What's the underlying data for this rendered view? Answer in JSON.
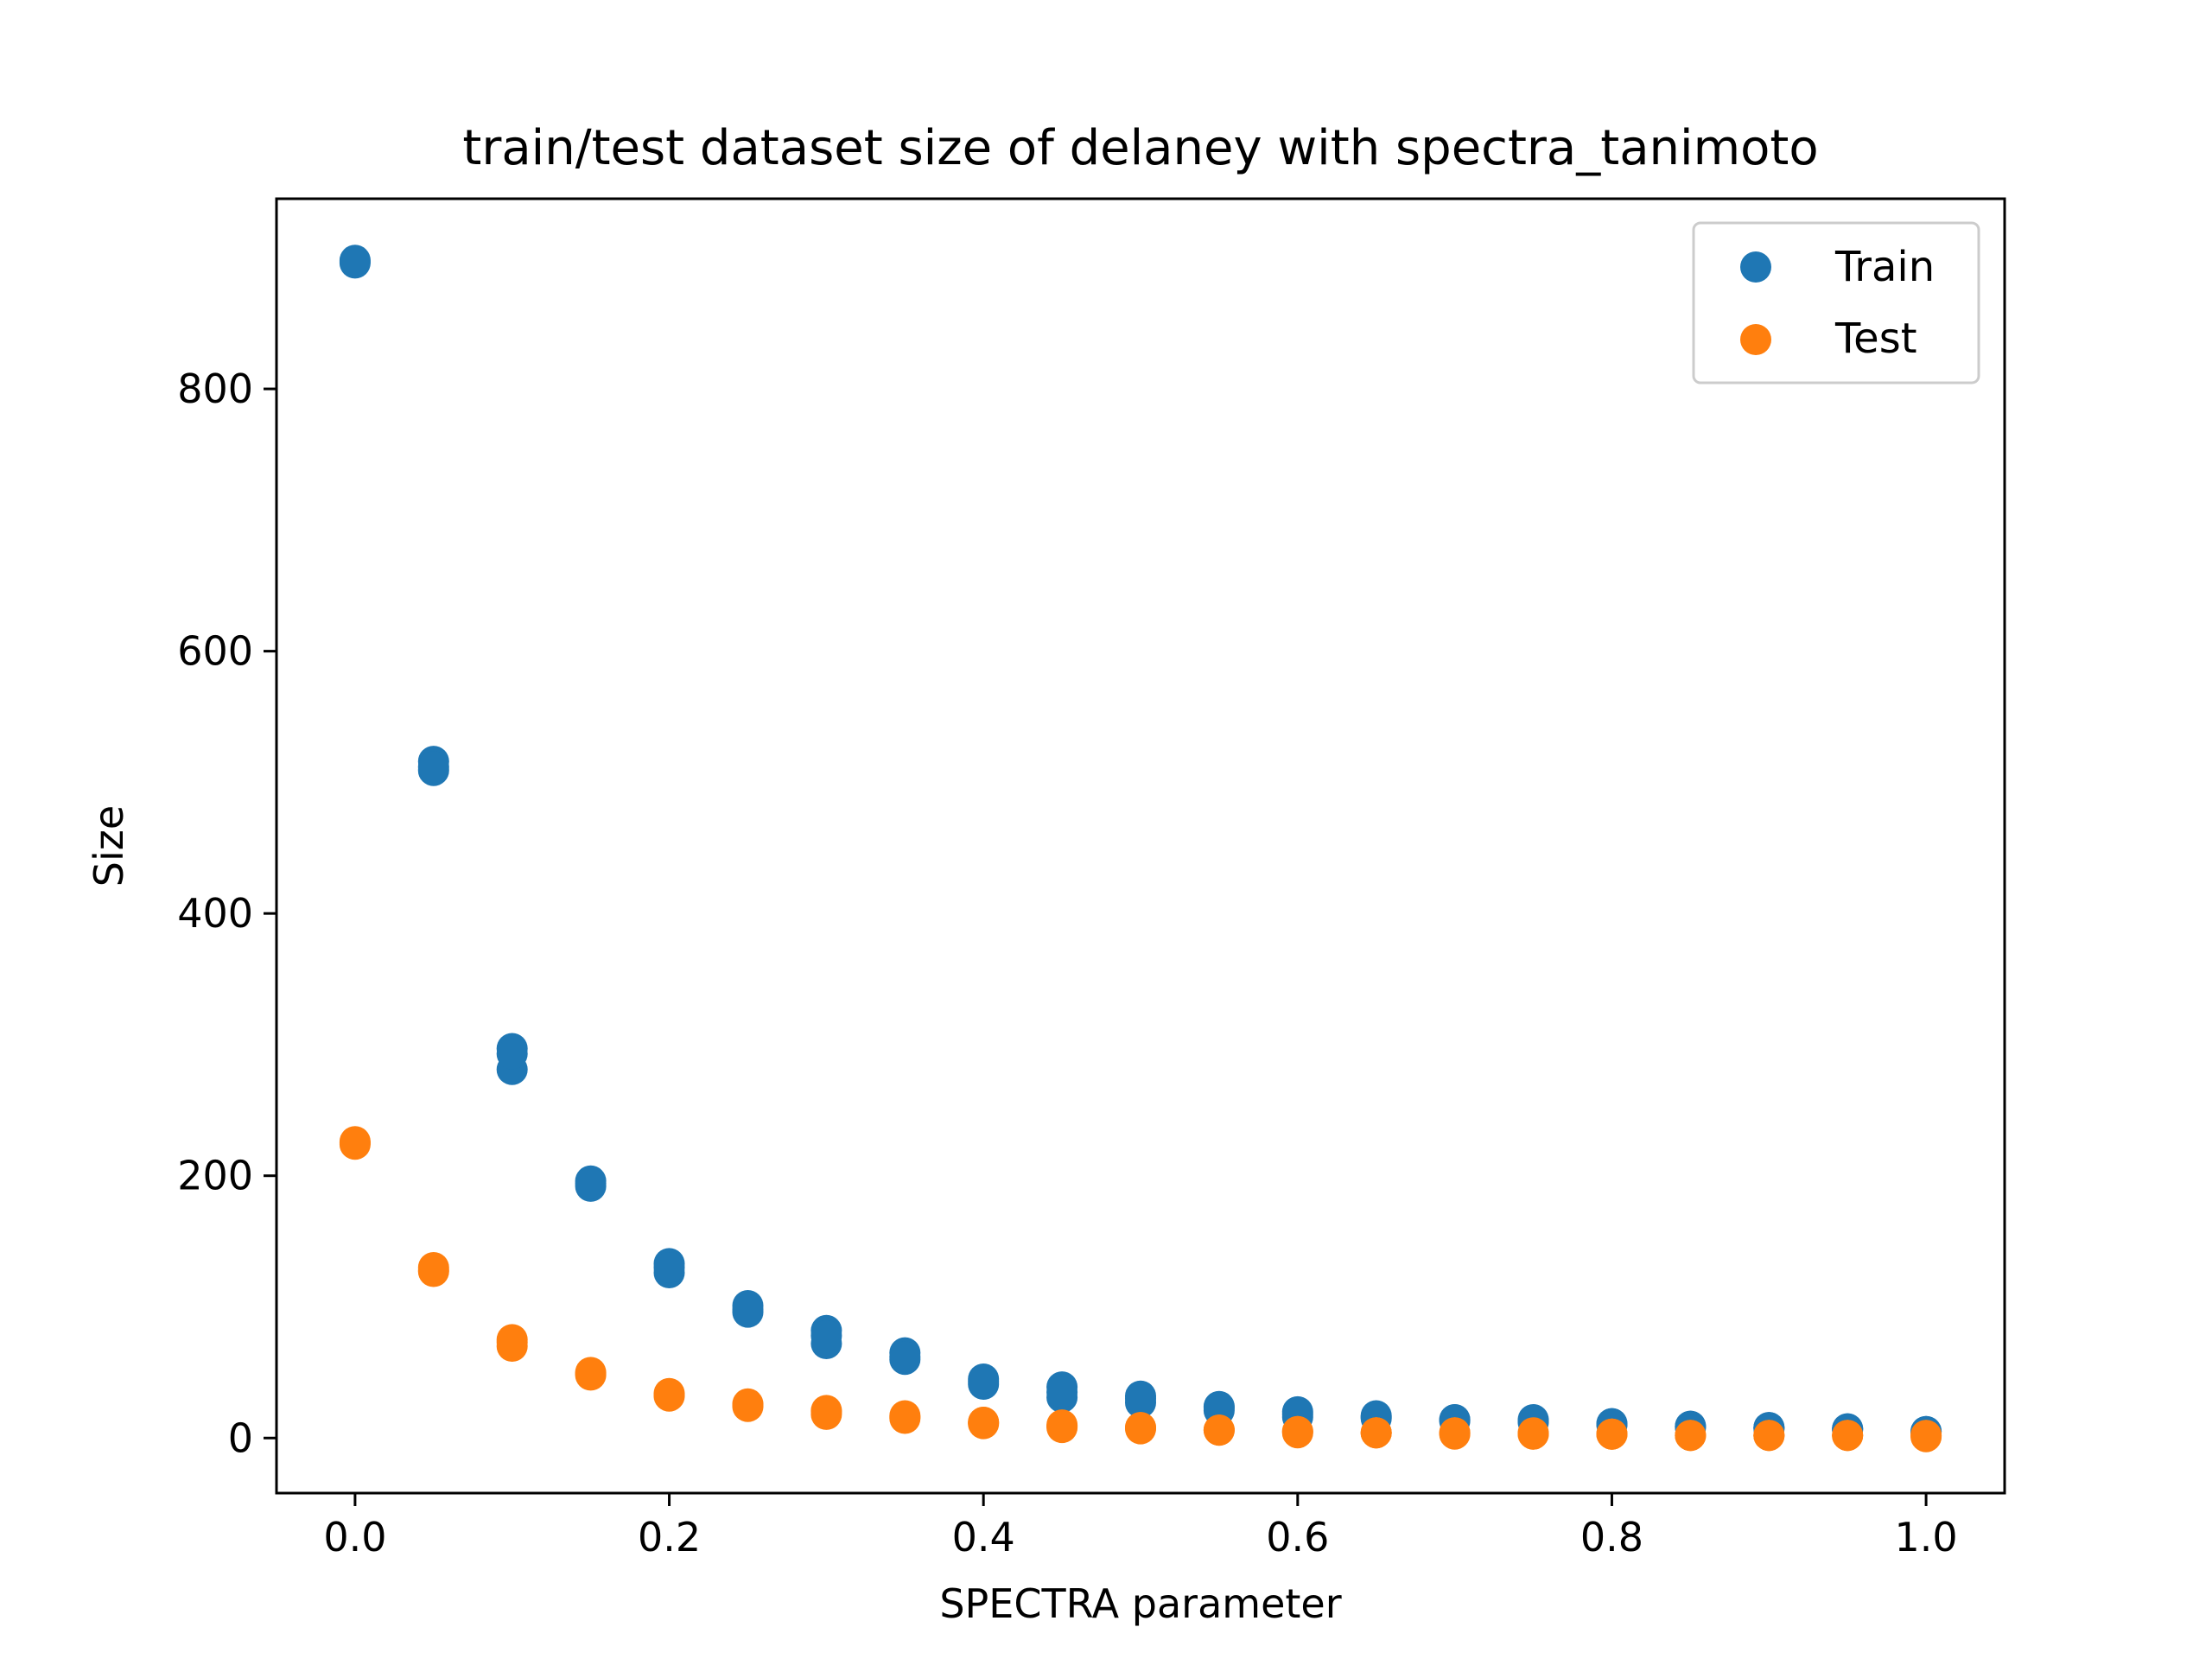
{
  "chart_data": {
    "type": "scatter",
    "title": "train/test dataset size of delaney with spectra_tanimoto",
    "xlabel": "SPECTRA parameter",
    "ylabel": "Size",
    "xlim": [
      -0.05,
      1.05
    ],
    "ylim": [
      -42,
      945
    ],
    "xticks": [
      0.0,
      0.2,
      0.4,
      0.6,
      0.8,
      1.0
    ],
    "xtick_labels": [
      "0.0",
      "0.2",
      "0.4",
      "0.6",
      "0.8",
      "1.0"
    ],
    "yticks": [
      0,
      200,
      400,
      600,
      800
    ],
    "ytick_labels": [
      "0",
      "200",
      "400",
      "600",
      "800"
    ],
    "grid": false,
    "legend": "top-right",
    "series": [
      {
        "name": "Train",
        "color": "#1f77b4",
        "points": [
          [
            0.0,
            897
          ],
          [
            0.0,
            896
          ],
          [
            0.0,
            898
          ],
          [
            0.05,
            516
          ],
          [
            0.05,
            509
          ],
          [
            0.05,
            512
          ],
          [
            0.1,
            297
          ],
          [
            0.1,
            281
          ],
          [
            0.1,
            293
          ],
          [
            0.15,
            196
          ],
          [
            0.15,
            192
          ],
          [
            0.15,
            194
          ],
          [
            0.2,
            133
          ],
          [
            0.2,
            126
          ],
          [
            0.2,
            130
          ],
          [
            0.25,
            101
          ],
          [
            0.25,
            96
          ],
          [
            0.25,
            98
          ],
          [
            0.3,
            82
          ],
          [
            0.3,
            72
          ],
          [
            0.3,
            78
          ],
          [
            0.35,
            65
          ],
          [
            0.35,
            60
          ],
          [
            0.35,
            62
          ],
          [
            0.4,
            45
          ],
          [
            0.4,
            41
          ],
          [
            0.4,
            43
          ],
          [
            0.45,
            39
          ],
          [
            0.45,
            31
          ],
          [
            0.45,
            35
          ],
          [
            0.5,
            32
          ],
          [
            0.5,
            27
          ],
          [
            0.5,
            30
          ],
          [
            0.55,
            24
          ],
          [
            0.55,
            21
          ],
          [
            0.55,
            23
          ],
          [
            0.6,
            20
          ],
          [
            0.6,
            16
          ],
          [
            0.6,
            18
          ],
          [
            0.65,
            17
          ],
          [
            0.65,
            15
          ],
          [
            0.65,
            16
          ],
          [
            0.7,
            14
          ],
          [
            0.7,
            13
          ],
          [
            0.7,
            14
          ],
          [
            0.75,
            14
          ],
          [
            0.75,
            12
          ],
          [
            0.75,
            13
          ],
          [
            0.8,
            11
          ],
          [
            0.8,
            10
          ],
          [
            0.8,
            11
          ],
          [
            0.85,
            9
          ],
          [
            0.85,
            8
          ],
          [
            0.85,
            9
          ],
          [
            0.9,
            8
          ],
          [
            0.9,
            7
          ],
          [
            0.9,
            8
          ],
          [
            0.95,
            7
          ],
          [
            0.95,
            6
          ],
          [
            0.95,
            7
          ],
          [
            1.0,
            5
          ],
          [
            1.0,
            4
          ],
          [
            1.0,
            5
          ]
        ]
      },
      {
        "name": "Test",
        "color": "#ff7f0e",
        "points": [
          [
            0.0,
            225
          ],
          [
            0.0,
            224
          ],
          [
            0.0,
            226
          ],
          [
            0.05,
            130
          ],
          [
            0.05,
            127
          ],
          [
            0.05,
            128
          ],
          [
            0.1,
            75
          ],
          [
            0.1,
            70
          ],
          [
            0.1,
            73
          ],
          [
            0.15,
            50
          ],
          [
            0.15,
            48
          ],
          [
            0.15,
            49
          ],
          [
            0.2,
            34
          ],
          [
            0.2,
            32
          ],
          [
            0.2,
            33
          ],
          [
            0.25,
            26
          ],
          [
            0.25,
            24
          ],
          [
            0.25,
            25
          ],
          [
            0.3,
            21
          ],
          [
            0.3,
            18
          ],
          [
            0.3,
            20
          ],
          [
            0.35,
            17
          ],
          [
            0.35,
            15
          ],
          [
            0.35,
            16
          ],
          [
            0.4,
            12
          ],
          [
            0.4,
            11
          ],
          [
            0.4,
            12
          ],
          [
            0.45,
            10
          ],
          [
            0.45,
            8
          ],
          [
            0.45,
            9
          ],
          [
            0.5,
            8
          ],
          [
            0.5,
            7
          ],
          [
            0.5,
            8
          ],
          [
            0.55,
            6
          ],
          [
            0.55,
            6
          ],
          [
            0.55,
            6
          ],
          [
            0.6,
            5
          ],
          [
            0.6,
            4
          ],
          [
            0.6,
            5
          ],
          [
            0.65,
            4
          ],
          [
            0.65,
            4
          ],
          [
            0.65,
            4
          ],
          [
            0.7,
            4
          ],
          [
            0.7,
            3
          ],
          [
            0.7,
            4
          ],
          [
            0.75,
            4
          ],
          [
            0.75,
            3
          ],
          [
            0.75,
            3
          ],
          [
            0.8,
            3
          ],
          [
            0.8,
            3
          ],
          [
            0.8,
            3
          ],
          [
            0.85,
            2
          ],
          [
            0.85,
            2
          ],
          [
            0.85,
            2
          ],
          [
            0.9,
            2
          ],
          [
            0.9,
            2
          ],
          [
            0.9,
            2
          ],
          [
            0.95,
            2
          ],
          [
            0.95,
            2
          ],
          [
            0.95,
            2
          ],
          [
            1.0,
            2
          ],
          [
            1.0,
            1
          ],
          [
            1.0,
            2
          ]
        ]
      }
    ]
  }
}
